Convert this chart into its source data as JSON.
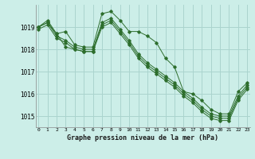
{
  "title": "Graphe pression niveau de la mer (hPa)",
  "background_color": "#cceee8",
  "grid_color": "#aad4ce",
  "line_color": "#2d6e2d",
  "ylim": [
    1014.5,
    1020.0
  ],
  "xlim": [
    0,
    23
  ],
  "yticks": [
    1015,
    1016,
    1017,
    1018,
    1019
  ],
  "xticks": [
    0,
    1,
    2,
    3,
    4,
    5,
    6,
    7,
    8,
    9,
    10,
    11,
    12,
    13,
    14,
    15,
    16,
    17,
    18,
    19,
    20,
    21,
    22,
    23
  ],
  "series": [
    [
      1019.0,
      1019.3,
      1018.7,
      1018.8,
      1018.2,
      1018.1,
      1018.1,
      1019.6,
      1019.7,
      1019.3,
      1018.8,
      1018.8,
      1018.6,
      1018.3,
      1017.6,
      1017.2,
      1016.1,
      1016.0,
      1015.7,
      1015.3,
      1015.1,
      1015.1,
      1016.1,
      1016.5
    ],
    [
      1019.0,
      1019.2,
      1018.6,
      1018.4,
      1018.1,
      1018.0,
      1018.0,
      1019.2,
      1019.4,
      1018.9,
      1018.4,
      1017.8,
      1017.4,
      1017.1,
      1016.8,
      1016.5,
      1016.1,
      1015.8,
      1015.4,
      1015.1,
      1015.0,
      1015.0,
      1015.9,
      1016.4
    ],
    [
      1018.9,
      1019.1,
      1018.5,
      1018.3,
      1018.0,
      1017.9,
      1017.9,
      1019.0,
      1019.2,
      1018.7,
      1018.2,
      1017.6,
      1017.2,
      1016.9,
      1016.6,
      1016.3,
      1015.9,
      1015.6,
      1015.2,
      1014.9,
      1014.8,
      1014.8,
      1015.7,
      1016.2
    ],
    [
      1019.0,
      1019.2,
      1018.7,
      1018.1,
      1018.0,
      1017.9,
      1017.9,
      1019.1,
      1019.3,
      1018.8,
      1018.3,
      1017.7,
      1017.3,
      1017.0,
      1016.7,
      1016.4,
      1016.0,
      1015.7,
      1015.3,
      1015.0,
      1014.9,
      1014.9,
      1015.8,
      1016.3
    ]
  ]
}
